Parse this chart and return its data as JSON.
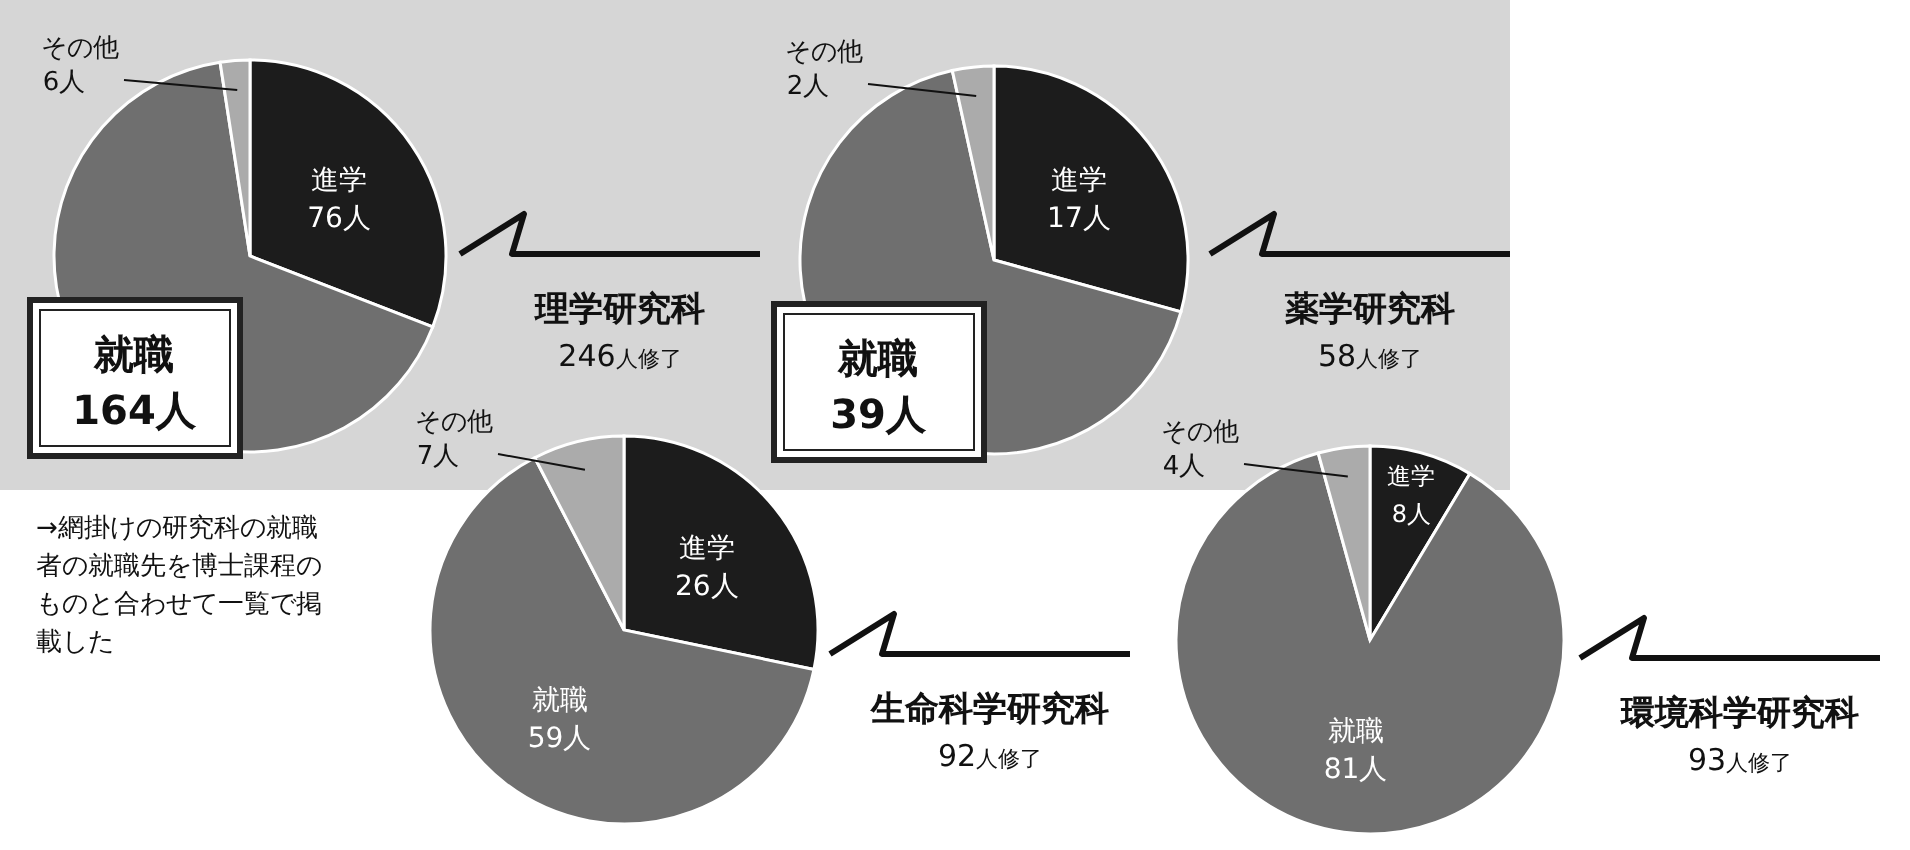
{
  "chart_data": [
    {
      "type": "pie",
      "title": "理学研究科",
      "subtitle": "246人修了",
      "categories": [
        "進学",
        "就職",
        "その他"
      ],
      "values": [
        76,
        164,
        6
      ],
      "value_labels": [
        "76人",
        "164人",
        "6人"
      ],
      "colors": [
        "#1c1c1c",
        "#6f6f6f",
        "#ababab"
      ]
    },
    {
      "type": "pie",
      "title": "薬学研究科",
      "subtitle": "58人修了",
      "categories": [
        "進学",
        "就職",
        "その他"
      ],
      "values": [
        17,
        39,
        2
      ],
      "value_labels": [
        "17人",
        "39人",
        "2人"
      ],
      "colors": [
        "#1c1c1c",
        "#6f6f6f",
        "#ababab"
      ]
    },
    {
      "type": "pie",
      "title": "生命科学研究科",
      "subtitle": "92人修了",
      "categories": [
        "進学",
        "就職",
        "その他"
      ],
      "values": [
        26,
        59,
        7
      ],
      "value_labels": [
        "26人",
        "59人",
        "7人"
      ],
      "colors": [
        "#1c1c1c",
        "#6f6f6f",
        "#ababab"
      ],
      "annotations": [
        "→網掛けの研究科の就職者の就職先を博士課程のものと合わせて一覧で掲載した"
      ]
    },
    {
      "type": "pie",
      "title": "環境科学研究科",
      "subtitle": "93人修了",
      "categories": [
        "進学",
        "就職",
        "その他"
      ],
      "values": [
        8,
        81,
        4
      ],
      "value_labels": [
        "8人",
        "81人",
        "4人"
      ],
      "colors": [
        "#1c1c1c",
        "#6f6f6f",
        "#ababab"
      ]
    }
  ]
}
